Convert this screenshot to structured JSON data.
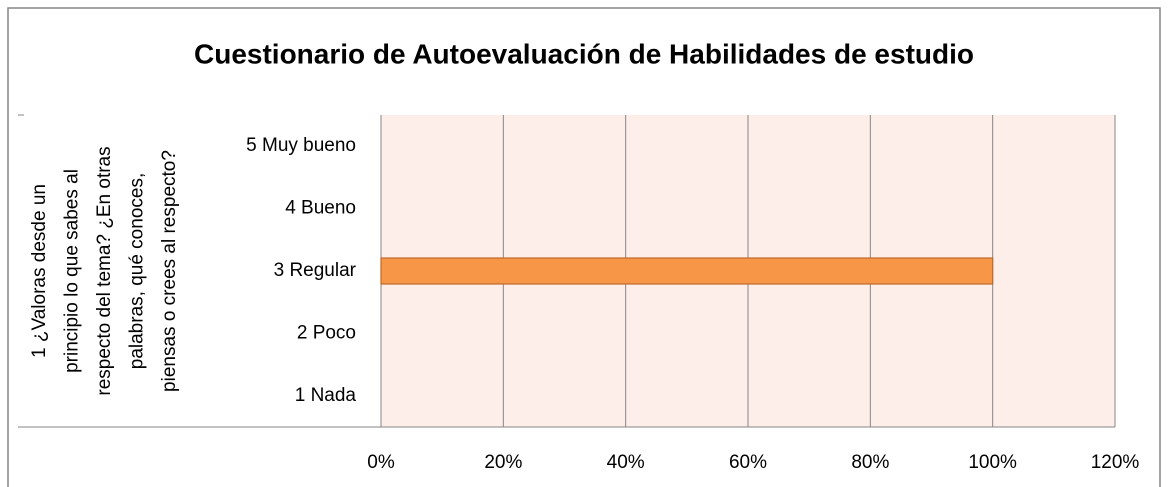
{
  "chart_data": {
    "type": "bar",
    "orientation": "horizontal",
    "title": "Cuestionario de Autoevaluación de Habilidades de estudio",
    "group_label": [
      "1 ¿Valoras desde un",
      "principio lo que sabes al",
      "respecto del tema? ¿En otras",
      "palabras, qué conoces,",
      "piensas o crees al respecto?"
    ],
    "categories": [
      "1 Nada",
      "2 Poco",
      "3 Regular",
      "4 Bueno",
      "5 Muy bueno"
    ],
    "values": [
      0,
      0,
      100,
      0,
      0
    ],
    "color": "#f79646",
    "xlim": [
      0,
      120
    ],
    "xticks": [
      {
        "value": 0,
        "label": "0%"
      },
      {
        "value": 20,
        "label": "20%"
      },
      {
        "value": 40,
        "label": "40%"
      },
      {
        "value": 60,
        "label": "60%"
      },
      {
        "value": 80,
        "label": "80%"
      },
      {
        "value": 100,
        "label": "100%"
      },
      {
        "value": 120,
        "label": "120%"
      }
    ],
    "grid": true
  }
}
